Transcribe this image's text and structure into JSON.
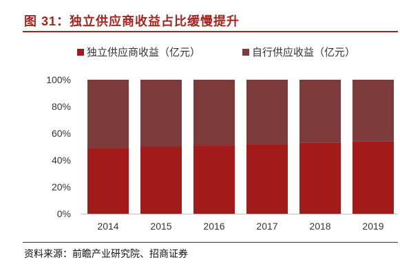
{
  "title": "图 31：独立供应商收益占比缓慢提升",
  "source": "资料来源：前瞻产业研究院、招商证券",
  "colors": {
    "title": "#A5241D",
    "independent": "#A31A1A",
    "self": "#7D3A3A",
    "axis": "#BFBFBF"
  },
  "chart_data": {
    "type": "bar",
    "stacked": true,
    "percent_stacked": true,
    "title": "独立供应商收益占比缓慢提升",
    "xlabel": "",
    "ylabel": "",
    "categories": [
      "2014",
      "2015",
      "2016",
      "2017",
      "2018",
      "2019"
    ],
    "series": [
      {
        "name": "独立供应商收益（亿元）",
        "color": "#A31A1A",
        "values": [
          49,
          50,
          51,
          52,
          53,
          54
        ]
      },
      {
        "name": "自行供应收益（亿元）",
        "color": "#7D3A3A",
        "values": [
          51,
          50,
          49,
          48,
          47,
          46
        ]
      }
    ],
    "ylim": [
      0,
      100
    ],
    "yticks": [
      0,
      20,
      40,
      60,
      80,
      100
    ],
    "ytick_labels": [
      "0%",
      "20%",
      "40%",
      "60%",
      "80%",
      "100%"
    ],
    "grid": false,
    "legend": "top"
  }
}
